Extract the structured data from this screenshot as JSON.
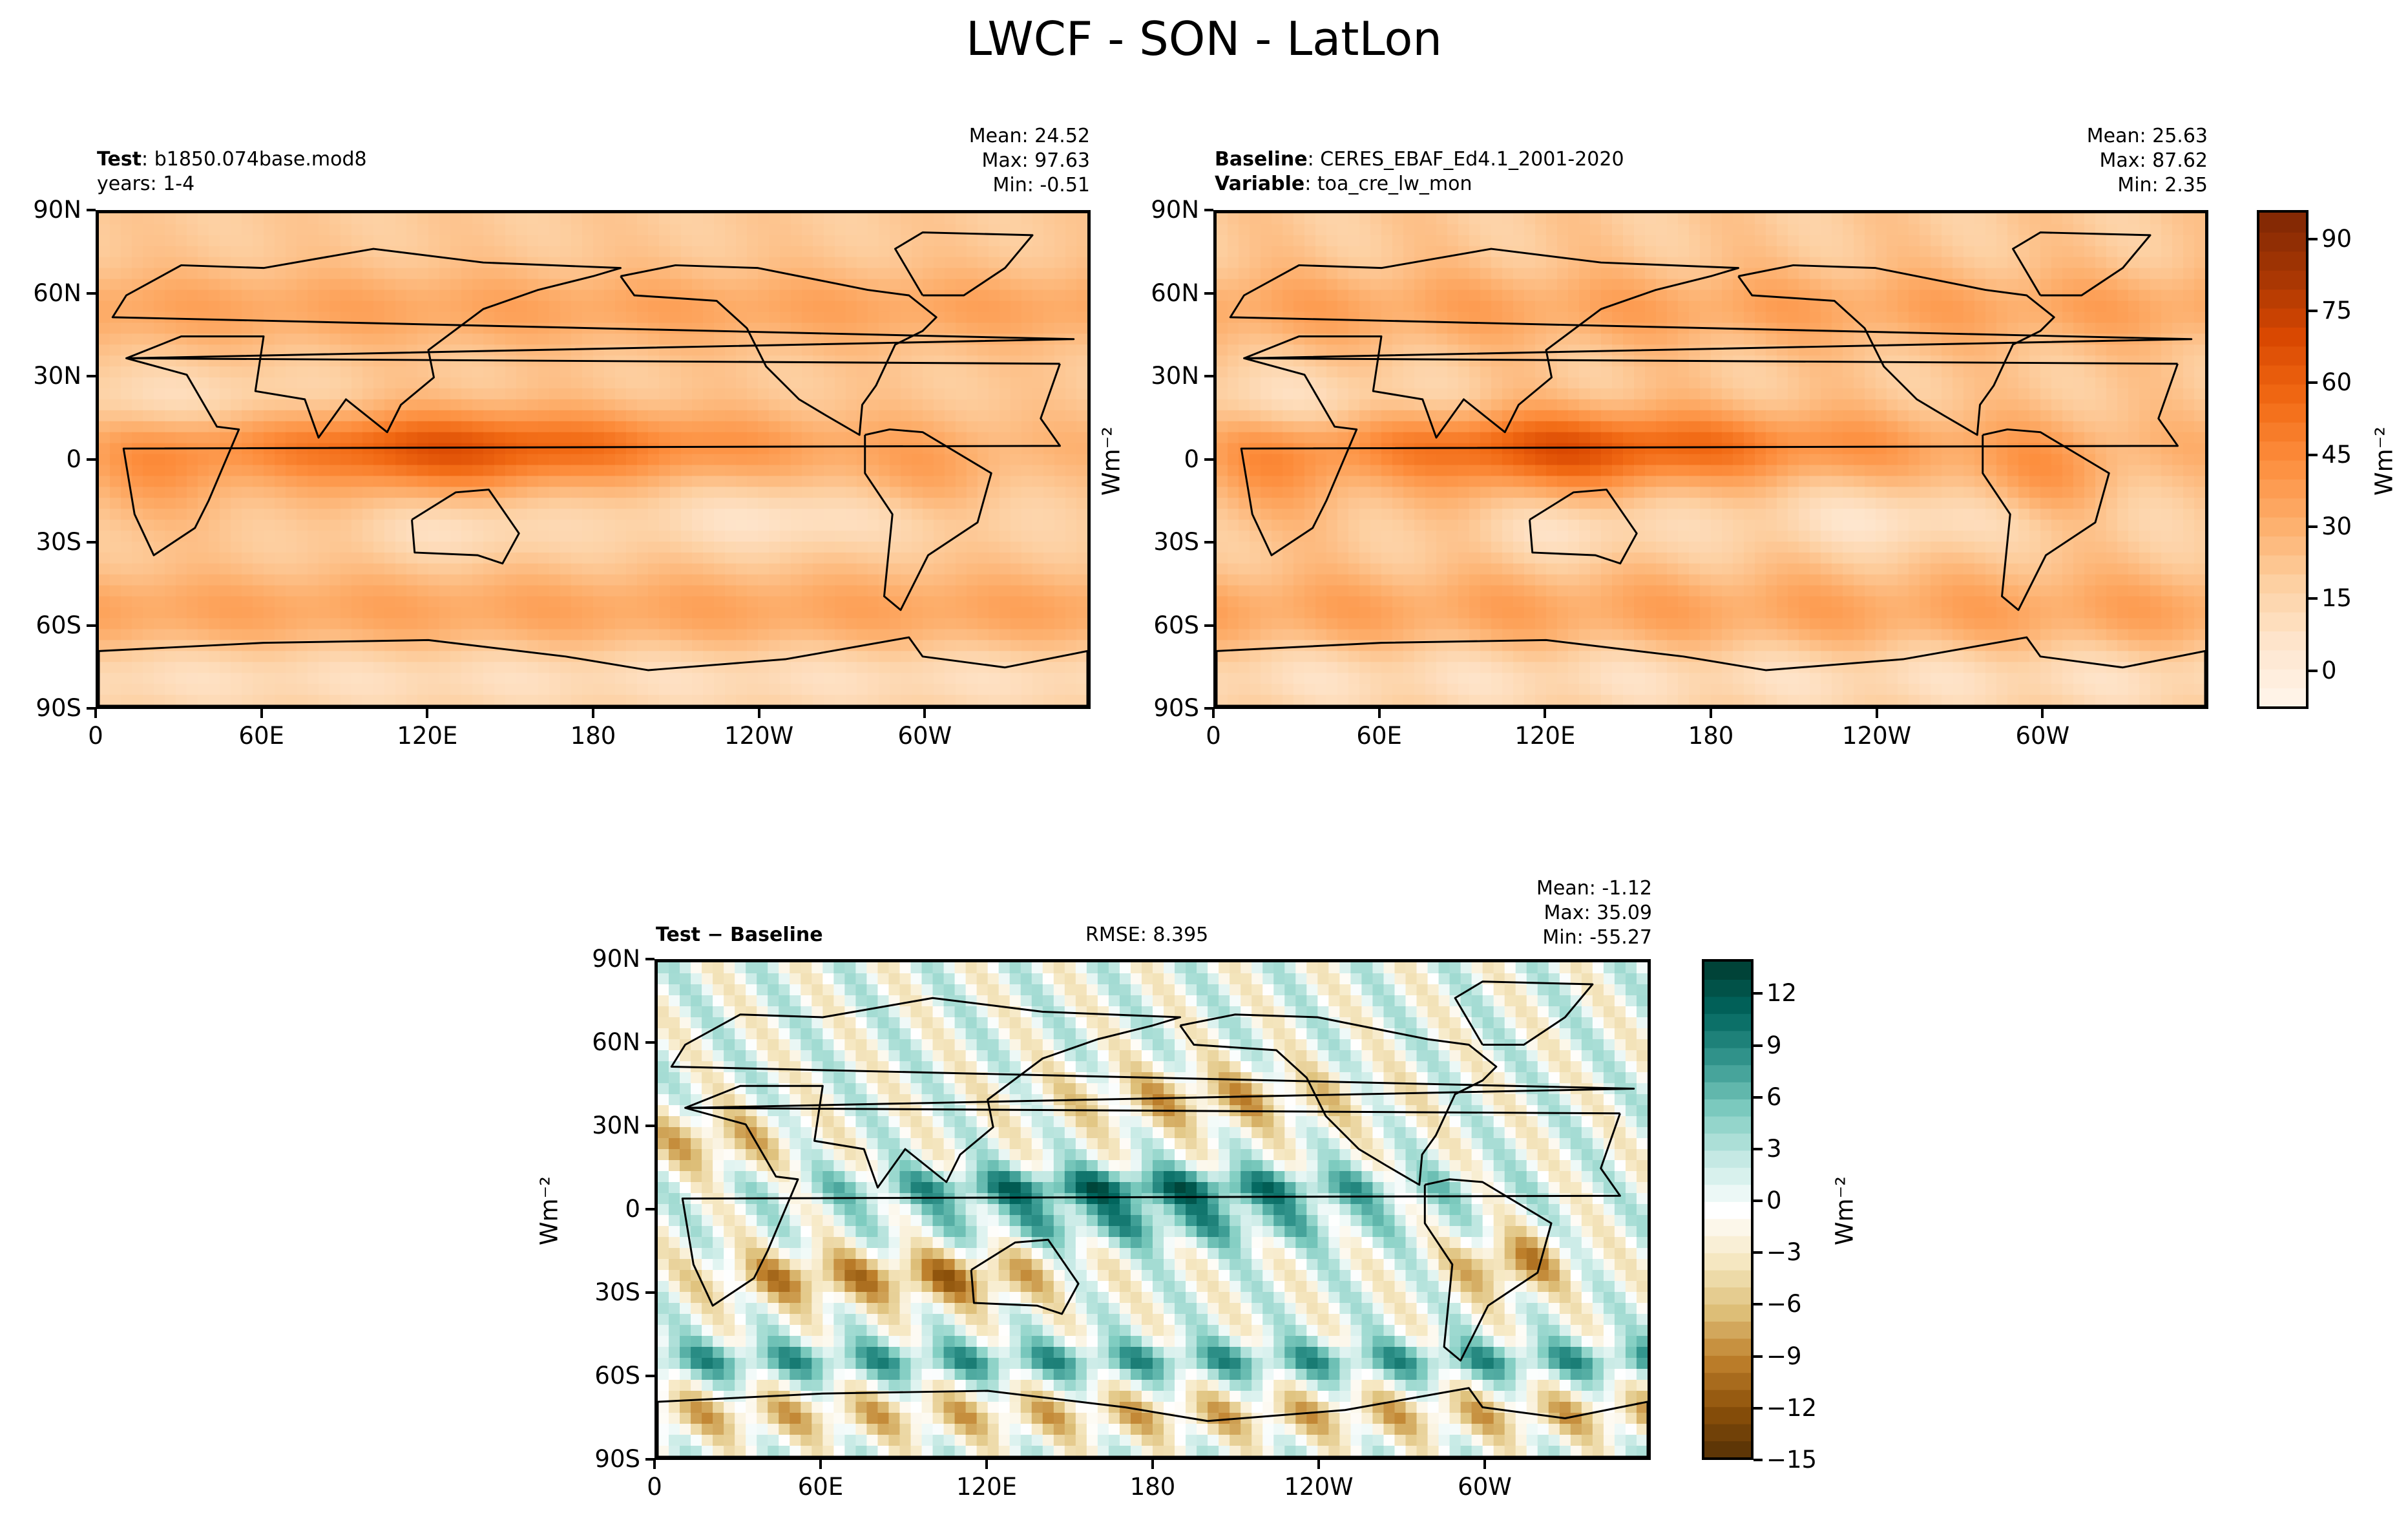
{
  "figure_title": "LWCF - SON - LatLon",
  "panels": {
    "test": {
      "label_bold": "Test",
      "label_sep": ": ",
      "label_value": "b1850.074base.mod8",
      "line2": "years: 1-4",
      "stats": [
        "Mean: 24.52",
        "Max: 97.63",
        "Min: -0.51"
      ]
    },
    "baseline": {
      "label_bold": "Baseline",
      "label_sep": ": ",
      "label_value": "CERES_EBAF_Ed4.1_2001-2020",
      "line2_bold": "Variable",
      "line2_value": "toa_cre_lw_mon",
      "stats": [
        "Mean: 25.63",
        "Max: 87.62",
        "Min:  2.35"
      ]
    },
    "diff": {
      "label_bold": "Test − Baseline",
      "rmse": "RMSE: 8.395",
      "stats": [
        "Mean: -1.12",
        "Max: 35.09",
        "Min: -55.27"
      ]
    }
  },
  "units": "Wm⁻²",
  "chart_data": [
    {
      "type": "heatmap",
      "name": "test",
      "x_ticks": [
        "0",
        "60E",
        "120E",
        "180",
        "120W",
        "60W"
      ],
      "y_ticks": [
        "90N",
        "60N",
        "30N",
        "0",
        "30S",
        "60S",
        "90S"
      ],
      "colorbar_ticks": [
        "90",
        "75",
        "60",
        "45",
        "30",
        "15",
        "0"
      ],
      "colorbar_range": [
        -8,
        96
      ],
      "colormap": [
        "#fff5eb",
        "#fee6ce",
        "#fdd0a2",
        "#fdae6b",
        "#fd8d3c",
        "#f16913",
        "#d94801",
        "#a63603",
        "#7f2704"
      ]
    },
    {
      "type": "heatmap",
      "name": "baseline",
      "x_ticks": [
        "0",
        "60E",
        "120E",
        "180",
        "120W",
        "60W"
      ],
      "y_ticks": [
        "90N",
        "60N",
        "30N",
        "0",
        "30S",
        "60S",
        "90S"
      ]
    },
    {
      "type": "heatmap",
      "name": "diff",
      "x_ticks": [
        "0",
        "60E",
        "120E",
        "180",
        "120W",
        "60W"
      ],
      "y_ticks": [
        "90N",
        "60N",
        "30N",
        "0",
        "30S",
        "60S",
        "90S"
      ],
      "colorbar_ticks": [
        "12",
        "9",
        "6",
        "3",
        "0",
        "−3",
        "−6",
        "−9",
        "−12",
        "−15"
      ],
      "colorbar_range": [
        -15,
        14
      ],
      "colormap": [
        "#543005",
        "#8c510a",
        "#bf812d",
        "#dfc27d",
        "#f6e8c3",
        "#ffffff",
        "#c7eae5",
        "#80cdc1",
        "#35978f",
        "#01665e",
        "#003c30"
      ]
    }
  ]
}
